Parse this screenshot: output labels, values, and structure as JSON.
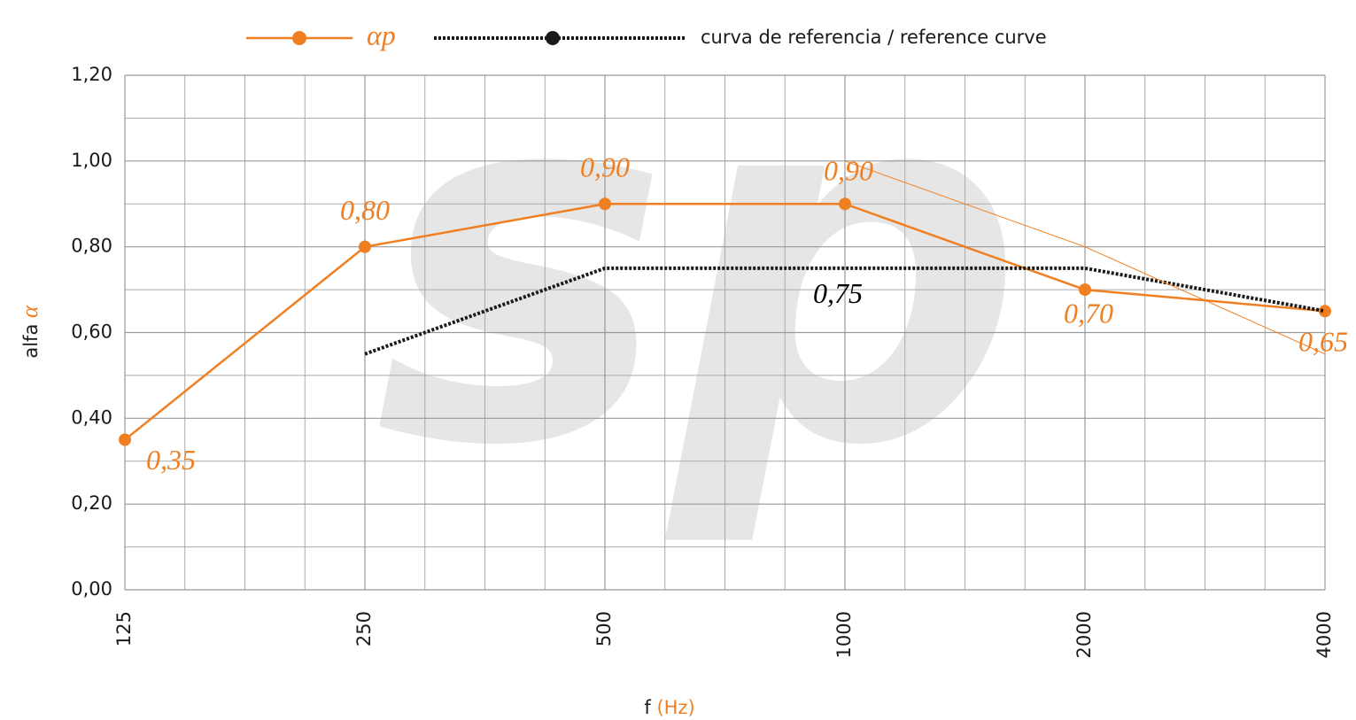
{
  "chart_data": {
    "type": "line",
    "watermark": "sp",
    "ylabel": "alfa",
    "ylabel_symbol": "α",
    "xlabel": "f",
    "xlabel_unit": "(Hz)",
    "categories": [
      "125",
      "250",
      "500",
      "1000",
      "2000",
      "4000"
    ],
    "series": [
      {
        "name": "αp",
        "color": "#f07f22",
        "values": [
          0.35,
          0.8,
          0.9,
          0.9,
          0.7,
          0.65
        ],
        "value_labels": [
          "0,35",
          "0,80",
          "0,90",
          "0,90",
          "0,70",
          "0,65"
        ]
      },
      {
        "name": "curva de referencia / reference curve",
        "color": "#1a1a1a",
        "dotted": true,
        "values": [
          null,
          0.55,
          0.75,
          0.75,
          0.75,
          0.65
        ],
        "value_labels": [
          null,
          null,
          null,
          "0,75",
          null,
          null
        ]
      },
      {
        "color": "#f07f22",
        "thin": true,
        "values": [
          null,
          null,
          null,
          1.0,
          0.8,
          0.55
        ]
      }
    ],
    "ylim": [
      0,
      1.2
    ],
    "yticks": [
      {
        "value": 0,
        "label": "0,00"
      },
      {
        "value": 0.2,
        "label": "0,20"
      },
      {
        "value": 0.4,
        "label": "0,40"
      },
      {
        "value": 0.6,
        "label": "0,60"
      },
      {
        "value": 0.8,
        "label": "0,80"
      },
      {
        "value": 1.0,
        "label": "1,00"
      },
      {
        "value": 1.2,
        "label": "1,20"
      }
    ],
    "grid": true
  }
}
